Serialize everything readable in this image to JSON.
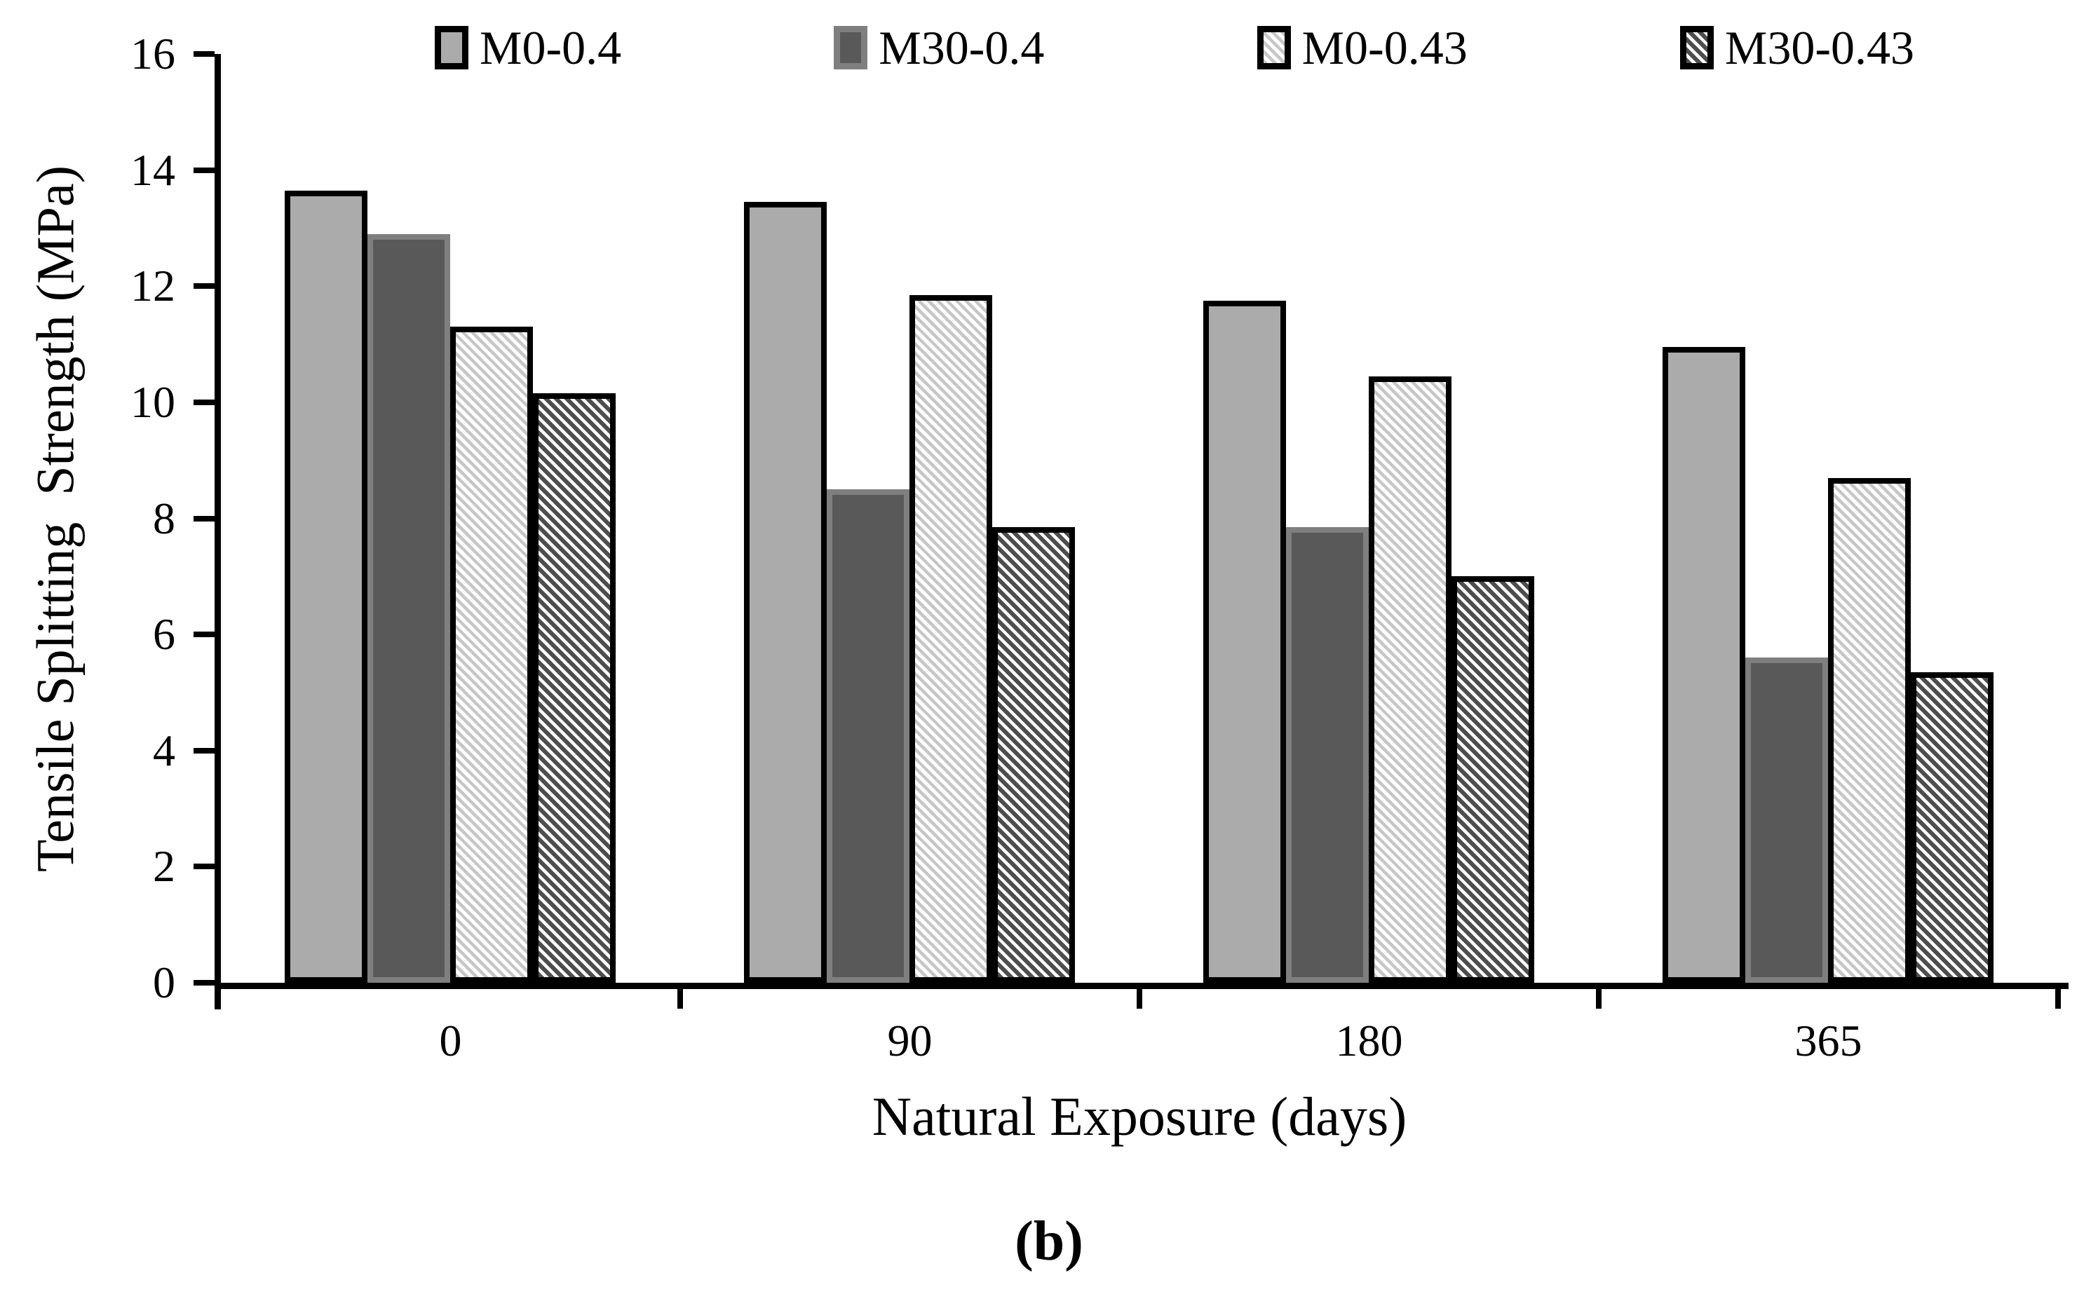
{
  "figure": {
    "caption": "(b)"
  },
  "chart_data": {
    "type": "bar",
    "title": "",
    "categories": [
      "0",
      "90",
      "180",
      "365"
    ],
    "series": [
      {
        "name": "M0-0.4",
        "style": "solid-light",
        "values": [
          13.65,
          13.45,
          11.75,
          10.95
        ]
      },
      {
        "name": "M30-0.4",
        "style": "solid-dark",
        "values": [
          12.9,
          8.5,
          7.85,
          5.6
        ]
      },
      {
        "name": "M0-0.43",
        "style": "hatch-light",
        "values": [
          11.3,
          11.85,
          10.45,
          8.7
        ]
      },
      {
        "name": "M30-0.43",
        "style": "hatch-dark",
        "values": [
          10.15,
          7.85,
          7.0,
          5.35
        ]
      }
    ],
    "xlabel": "Natural Exposure (days)",
    "ylabel": "Tensile Splitting  Strength (MPa)",
    "ylim": [
      0,
      16
    ],
    "ytick_step": 2,
    "grid": false,
    "legend_position": "top",
    "colors": {
      "axis": "#000000",
      "bar_solid_light": "#ababab",
      "bar_solid_dark": "#595959",
      "bar_dark_border": "#7f7f7f",
      "hatch_light_stripe": "#c6c6c6",
      "hatch_dark_stripe": "#4d4d4d",
      "background": "#ffffff"
    }
  }
}
